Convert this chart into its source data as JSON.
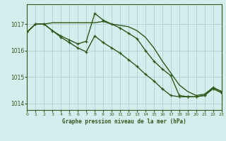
{
  "title": "Graphe pression niveau de la mer (hPa)",
  "background_color": "#d4eeee",
  "grid_color": "#b0d0d0",
  "line_color": "#2d5a1b",
  "xlim": [
    0,
    23
  ],
  "ylim": [
    1013.75,
    1017.75
  ],
  "yticks": [
    1014,
    1015,
    1016,
    1017
  ],
  "xticks": [
    0,
    1,
    2,
    3,
    4,
    5,
    6,
    7,
    8,
    9,
    10,
    11,
    12,
    13,
    14,
    15,
    16,
    17,
    18,
    19,
    20,
    21,
    22,
    23
  ],
  "series": [
    {
      "x": [
        0,
        1,
        2,
        3,
        4,
        5,
        6,
        7,
        8,
        9,
        10,
        11,
        12,
        13,
        14,
        15,
        16,
        17,
        18,
        19,
        20,
        21,
        22,
        23
      ],
      "y": [
        1016.7,
        1017.0,
        1017.0,
        1016.75,
        1016.55,
        1016.4,
        1016.25,
        1016.35,
        1017.4,
        1017.15,
        1017.0,
        1016.85,
        1016.65,
        1016.45,
        1016.0,
        1015.6,
        1015.3,
        1015.05,
        1014.3,
        1014.25,
        1014.25,
        1014.3,
        1014.6,
        1014.45
      ],
      "marker": true,
      "linewidth": 1.0
    },
    {
      "x": [
        0,
        1,
        2,
        3,
        4,
        5,
        6,
        7,
        8,
        9,
        10,
        11,
        12,
        13,
        14,
        15,
        16,
        17,
        18,
        19,
        20,
        21,
        22,
        23
      ],
      "y": [
        1016.7,
        1017.0,
        1017.0,
        1017.05,
        1017.05,
        1017.05,
        1017.05,
        1017.05,
        1017.05,
        1017.1,
        1017.0,
        1016.95,
        1016.9,
        1016.75,
        1016.5,
        1016.1,
        1015.6,
        1015.15,
        1014.7,
        1014.45,
        1014.3,
        1014.35,
        1014.6,
        1014.45
      ],
      "marker": false,
      "linewidth": 1.0
    },
    {
      "x": [
        0,
        1,
        2,
        3,
        4,
        5,
        6,
        7,
        8,
        9,
        10,
        11,
        12,
        13,
        14,
        15,
        16,
        17,
        18,
        19,
        20,
        21,
        22,
        23
      ],
      "y": [
        1016.7,
        1017.0,
        1017.0,
        1016.75,
        1016.5,
        1016.3,
        1016.1,
        1015.95,
        1016.55,
        1016.3,
        1016.1,
        1015.9,
        1015.65,
        1015.4,
        1015.1,
        1014.85,
        1014.55,
        1014.3,
        1014.25,
        1014.25,
        1014.25,
        1014.3,
        1014.55,
        1014.4
      ],
      "marker": true,
      "linewidth": 1.0
    }
  ]
}
